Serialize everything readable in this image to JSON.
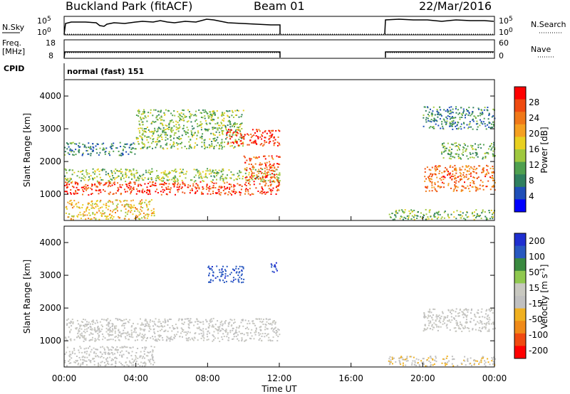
{
  "header": {
    "station": "Buckland Park (fitACF)",
    "beam": "Beam 01",
    "date": "22/Mar/2016"
  },
  "top_panels": {
    "nsky_label": "N.Sky",
    "nsky_ticks": [
      "10^5",
      "10^0"
    ],
    "nsearch_label": "N.Search",
    "nsearch_ticks": [
      "10^5",
      "10^0"
    ],
    "freq_label_1": "Freq.",
    "freq_label_2": "[MHz]",
    "freq_ticks": [
      "18",
      "8"
    ],
    "nave_label": "Nave",
    "nave_ticks": [
      "60",
      "0"
    ],
    "cpid_label": "CPID",
    "cpid_value": "normal (fast) 151"
  },
  "colors": {
    "power_scale": [
      "#0000ff",
      "#1f4fb8",
      "#2f7f5f",
      "#4fa04f",
      "#9fc83f",
      "#e8d020",
      "#f5a020",
      "#f07818",
      "#ef4a10",
      "#ff0000"
    ],
    "velocity_scale": [
      "#1f2fd0",
      "#2858c0",
      "#3a8a40",
      "#8fc84f",
      "#c8c8c0",
      "#c0c0c0",
      "#f0b020",
      "#f08a18",
      "#f04a10",
      "#ff0000"
    ]
  },
  "chart_data": [
    {
      "type": "heatmap",
      "panel": "power",
      "xlabel": "",
      "ylabel": "Slant Range [km]",
      "yticks": [
        "1000",
        "2000",
        "3000",
        "4000"
      ],
      "ylim": [
        200,
        4500
      ],
      "xlim": [
        0,
        24
      ],
      "colorbar_label": "Power [dB]",
      "colorbar_ticks": [
        "4",
        "8",
        "12",
        "16",
        "20",
        "24",
        "28"
      ],
      "colorbar_range": [
        0,
        30
      ],
      "data_gap_hours": [
        12,
        18
      ],
      "echo_regions": [
        {
          "t0": 0,
          "t1": 12,
          "r0": 1000,
          "r1": 1400,
          "value": 26
        },
        {
          "t0": 0,
          "t1": 12,
          "r0": 1400,
          "r1": 1800,
          "value": 13
        },
        {
          "t0": 0,
          "t1": 5,
          "r0": 250,
          "r1": 850,
          "value": 18
        },
        {
          "t0": 0,
          "t1": 4,
          "r0": 2200,
          "r1": 2600,
          "value": 8
        },
        {
          "t0": 4,
          "t1": 10,
          "r0": 2400,
          "r1": 3600,
          "value": 12
        },
        {
          "t0": 9,
          "t1": 12,
          "r0": 2500,
          "r1": 3000,
          "value": 27
        },
        {
          "t0": 10,
          "t1": 12,
          "r0": 1400,
          "r1": 2200,
          "value": 25
        },
        {
          "t0": 18,
          "t1": 24,
          "r0": 250,
          "r1": 550,
          "value": 12
        },
        {
          "t0": 20,
          "t1": 24,
          "r0": 1100,
          "r1": 1900,
          "value": 23
        },
        {
          "t0": 21,
          "t1": 24,
          "r0": 2100,
          "r1": 2600,
          "value": 11
        },
        {
          "t0": 20,
          "t1": 24,
          "r0": 3000,
          "r1": 3700,
          "value": 8
        }
      ]
    },
    {
      "type": "heatmap",
      "panel": "velocity",
      "xlabel": "Time UT",
      "ylabel": "Slant Range [km]",
      "yticks": [
        "1000",
        "2000",
        "3000",
        "4000"
      ],
      "ylim": [
        200,
        4500
      ],
      "xlim": [
        0,
        24
      ],
      "xticks": [
        "00:00",
        "04:00",
        "08:00",
        "12:00",
        "16:00",
        "20:00",
        "00:00"
      ],
      "colorbar_label": "Velocity [m s^-1]",
      "colorbar_ticks": [
        "200",
        "100",
        "50",
        "15",
        "-15",
        "-50",
        "-100",
        "-200"
      ],
      "colorbar_range": [
        -250,
        250
      ],
      "data_gap_hours": [
        12,
        18
      ],
      "echo_regions": [
        {
          "t0": 0,
          "t1": 12,
          "r0": 1000,
          "r1": 1700,
          "value": 0
        },
        {
          "t0": 0,
          "t1": 5,
          "r0": 250,
          "r1": 850,
          "value": -10
        },
        {
          "t0": 8,
          "t1": 10,
          "r0": 2800,
          "r1": 3300,
          "value": 180
        },
        {
          "t0": 11.5,
          "t1": 12,
          "r0": 3100,
          "r1": 3400,
          "value": 200
        },
        {
          "t0": 18,
          "t1": 24,
          "r0": 250,
          "r1": 550,
          "value": -40
        },
        {
          "t0": 20,
          "t1": 24,
          "r0": 1300,
          "r1": 2000,
          "value": 0
        }
      ]
    }
  ]
}
